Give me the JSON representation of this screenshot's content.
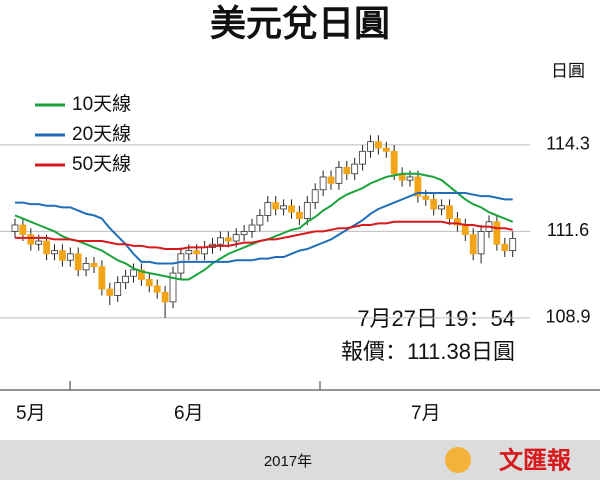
{
  "chart_data": {
    "type": "candlestick",
    "title": "美元兌日圓",
    "y_label": "日圓",
    "categories": [
      null,
      null,
      "5月",
      null,
      null,
      null,
      null,
      null,
      null,
      null,
      null,
      null,
      null,
      null,
      null,
      null,
      null,
      null,
      null,
      null,
      null,
      null,
      "6月",
      null,
      null,
      null,
      null,
      null,
      null,
      null,
      null,
      null,
      null,
      null,
      null,
      null,
      null,
      null,
      null,
      null,
      null,
      null,
      null,
      null,
      null,
      null,
      null,
      null,
      null,
      null,
      null,
      null,
      "7月",
      null,
      null,
      null,
      null,
      null,
      null,
      null,
      null,
      null,
      null,
      null
    ],
    "open": [
      111.6,
      111.8,
      111.5,
      111.2,
      111.3,
      110.9,
      111.0,
      110.7,
      110.9,
      110.4,
      110.6,
      110.5,
      109.8,
      109.6,
      110.0,
      110.2,
      110.4,
      110.1,
      109.9,
      109.7,
      109.4,
      110.3,
      110.9,
      111.0,
      110.9,
      111.1,
      111.2,
      111.4,
      111.3,
      111.5,
      111.6,
      111.8,
      112.1,
      112.5,
      112.3,
      112.4,
      112.2,
      112.0,
      112.5,
      112.9,
      113.3,
      113.1,
      113.6,
      113.4,
      113.7,
      114.1,
      114.4,
      114.2,
      114.1,
      113.4,
      113.2,
      113.3,
      112.7,
      112.6,
      112.3,
      112.4,
      112.0,
      111.8,
      111.5,
      110.9,
      111.6,
      111.9,
      111.2,
      111.0
    ],
    "high": [
      112.0,
      112.0,
      111.7,
      111.5,
      111.5,
      111.2,
      111.2,
      111.1,
      111.1,
      110.8,
      110.8,
      110.7,
      110.0,
      110.2,
      110.4,
      110.6,
      110.6,
      110.3,
      110.1,
      109.9,
      110.5,
      111.1,
      111.2,
      111.2,
      111.3,
      111.4,
      111.6,
      111.6,
      111.7,
      111.8,
      112.0,
      112.3,
      112.7,
      112.7,
      112.6,
      112.6,
      112.4,
      112.7,
      113.1,
      113.5,
      113.5,
      113.8,
      113.8,
      113.9,
      114.3,
      114.6,
      114.6,
      114.4,
      114.3,
      113.6,
      113.5,
      113.5,
      112.9,
      112.8,
      112.6,
      112.6,
      112.2,
      112.0,
      111.7,
      111.8,
      112.1,
      112.1,
      111.4,
      111.6
    ],
    "low": [
      111.4,
      111.3,
      111.0,
      111.0,
      110.7,
      110.7,
      110.5,
      110.5,
      110.2,
      110.2,
      110.3,
      109.6,
      109.3,
      109.4,
      109.8,
      110.0,
      109.9,
      109.7,
      109.5,
      108.9,
      109.2,
      110.1,
      110.7,
      110.7,
      110.7,
      110.9,
      111.0,
      111.1,
      111.1,
      111.3,
      111.4,
      111.6,
      111.9,
      112.1,
      112.1,
      112.0,
      111.8,
      111.8,
      112.3,
      112.7,
      112.9,
      112.9,
      113.2,
      113.2,
      113.5,
      113.9,
      114.0,
      113.9,
      113.2,
      113.0,
      113.0,
      112.5,
      112.4,
      112.1,
      112.1,
      111.8,
      111.6,
      111.3,
      110.7,
      110.6,
      111.4,
      111.0,
      110.8,
      110.8
    ],
    "close": [
      111.8,
      111.5,
      111.2,
      111.3,
      110.9,
      111.0,
      110.7,
      110.9,
      110.4,
      110.6,
      110.5,
      109.8,
      109.6,
      110.0,
      110.2,
      110.4,
      110.1,
      109.9,
      109.7,
      109.4,
      110.3,
      110.9,
      111.0,
      110.9,
      111.1,
      111.2,
      111.4,
      111.3,
      111.5,
      111.6,
      111.8,
      112.1,
      112.5,
      112.3,
      112.4,
      112.2,
      112.0,
      112.5,
      112.9,
      113.3,
      113.1,
      113.6,
      113.4,
      113.7,
      114.1,
      114.4,
      114.2,
      114.1,
      113.4,
      113.2,
      113.3,
      112.7,
      112.6,
      112.3,
      112.4,
      112.0,
      111.8,
      111.5,
      110.9,
      111.6,
      111.9,
      111.2,
      111.0,
      111.38
    ],
    "up_color": "#ffffff",
    "down_color": "#f2a516",
    "series": [
      {
        "name": "10天線",
        "color": "#1aa33a",
        "values": [
          112.1,
          112.0,
          111.9,
          111.8,
          111.7,
          111.6,
          111.45,
          111.35,
          111.3,
          111.2,
          111.1,
          111.0,
          110.85,
          110.7,
          110.6,
          110.45,
          110.35,
          110.3,
          110.25,
          110.2,
          110.15,
          110.1,
          110.1,
          110.25,
          110.4,
          110.6,
          110.75,
          110.9,
          111.0,
          111.1,
          111.2,
          111.3,
          111.35,
          111.45,
          111.55,
          111.65,
          111.7,
          111.9,
          112.05,
          112.25,
          112.4,
          112.6,
          112.75,
          112.85,
          112.95,
          113.1,
          113.2,
          113.3,
          113.35,
          113.4,
          113.4,
          113.4,
          113.35,
          113.3,
          113.2,
          113.0,
          112.8,
          112.6,
          112.45,
          112.35,
          112.2,
          112.1,
          112.0,
          111.9
        ]
      },
      {
        "name": "20天線",
        "color": "#1f6fb8",
        "values": [
          112.5,
          112.5,
          112.45,
          112.45,
          112.4,
          112.4,
          112.35,
          112.35,
          112.25,
          112.15,
          112.1,
          112.0,
          111.7,
          111.45,
          111.2,
          110.9,
          110.65,
          110.65,
          110.6,
          110.6,
          110.6,
          110.65,
          110.65,
          110.65,
          110.65,
          110.65,
          110.65,
          110.65,
          110.7,
          110.7,
          110.7,
          110.75,
          110.75,
          110.8,
          110.8,
          110.9,
          111.0,
          111.05,
          111.15,
          111.25,
          111.35,
          111.5,
          111.65,
          111.8,
          111.95,
          112.15,
          112.3,
          112.4,
          112.5,
          112.6,
          112.7,
          112.8,
          112.8,
          112.8,
          112.8,
          112.8,
          112.8,
          112.8,
          112.75,
          112.7,
          112.7,
          112.65,
          112.6,
          112.6
        ]
      },
      {
        "name": "50天線",
        "color": "#d7191c",
        "values": [
          111.4,
          111.4,
          111.4,
          111.4,
          111.4,
          111.35,
          111.35,
          111.35,
          111.3,
          111.3,
          111.3,
          111.3,
          111.25,
          111.2,
          111.2,
          111.15,
          111.15,
          111.1,
          111.1,
          111.05,
          111.05,
          111.05,
          111.1,
          111.1,
          111.1,
          111.15,
          111.15,
          111.15,
          111.2,
          111.25,
          111.25,
          111.3,
          111.35,
          111.35,
          111.4,
          111.45,
          111.5,
          111.55,
          111.6,
          111.6,
          111.65,
          111.7,
          111.7,
          111.75,
          111.8,
          111.8,
          111.85,
          111.85,
          111.9,
          111.9,
          111.9,
          111.9,
          111.9,
          111.9,
          111.9,
          111.85,
          111.85,
          111.8,
          111.8,
          111.75,
          111.75,
          111.7,
          111.7,
          111.65
        ]
      }
    ],
    "ylim": [
      106.65,
      116.95
    ],
    "yticks": [
      108.9,
      111.6,
      114.3
    ],
    "grid": true,
    "annotations": [
      "7月27日 19：54",
      "報價：111.38日圓"
    ],
    "footer": "2017年",
    "source": "文匯報"
  }
}
